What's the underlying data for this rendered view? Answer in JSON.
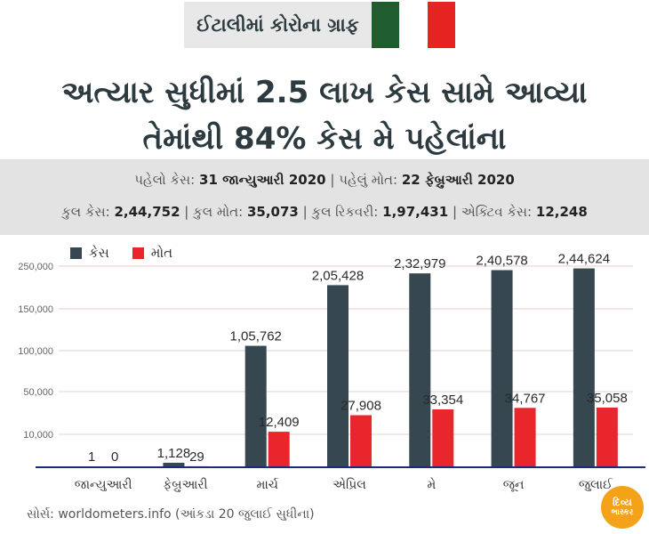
{
  "header": {
    "tag": "ઈટાલીમાં કોરોના ગ્રાફ",
    "flag_colors": [
      "#1f5c2e",
      "#ffffff",
      "#e52421"
    ]
  },
  "headline": {
    "line1": "અત્યાર સુધીમાં 2.5 લાખ કેસ સામે આવ્યા",
    "line2": "તેમાંથી 84% કેસ મે પહેલાંના"
  },
  "info": {
    "first_case_label": "પહેલો કેસ:",
    "first_case_value": "31 જાન્યુઆરી 2020",
    "first_death_label": "પહેલું મોત:",
    "first_death_value": "22 ફેબ્રુઆરી 2020",
    "total_cases_label": "કુલ કેસ:",
    "total_cases_value": "2,44,752",
    "total_deaths_label": "કુલ મોત:",
    "total_deaths_value": "35,073",
    "total_recovered_label": "કુલ રિકવરી:",
    "total_recovered_value": "1,97,431",
    "active_label": "એક્ટિવ કેસ:",
    "active_value": "12,248",
    "separator": "|"
  },
  "chart_data": {
    "type": "bar",
    "categories": [
      "જાન્યુઆરી",
      "ફેબ્રુઆરી",
      "માર્ચ",
      "એપ્રિલ",
      "મે",
      "જૂન",
      "જુલાઈ"
    ],
    "series": [
      {
        "name": "કેસ",
        "color": "#37474f",
        "values": [
          1,
          1128,
          105762,
          205428,
          232979,
          240578,
          244624
        ],
        "labels": [
          "1",
          "1,128",
          "1,05,762",
          "2,05,428",
          "2,32,979",
          "2,40,578",
          "2,44,624"
        ]
      },
      {
        "name": "મોત",
        "color": "#e8262c",
        "values": [
          0,
          29,
          12409,
          27908,
          33354,
          34767,
          35058
        ],
        "labels": [
          "0",
          "29",
          "12,409",
          "27,908",
          "33,354",
          "34,767",
          "35,058"
        ]
      }
    ],
    "y_tick_labels": [
      "10,000",
      "50,000",
      "100,000",
      "150,000",
      "250,000"
    ],
    "y_tick_values": [
      10000,
      50000,
      100000,
      150000,
      250000
    ],
    "ylim": [
      0,
      270000
    ],
    "grid": true,
    "legend": "top-left"
  },
  "footer": {
    "source": "સોર્સ: worldometers.info (આંકડા 20 જુલાઈ સુધીના)",
    "logo_line1": "દિવ્ય",
    "logo_line2": "ભાસ્કર"
  }
}
